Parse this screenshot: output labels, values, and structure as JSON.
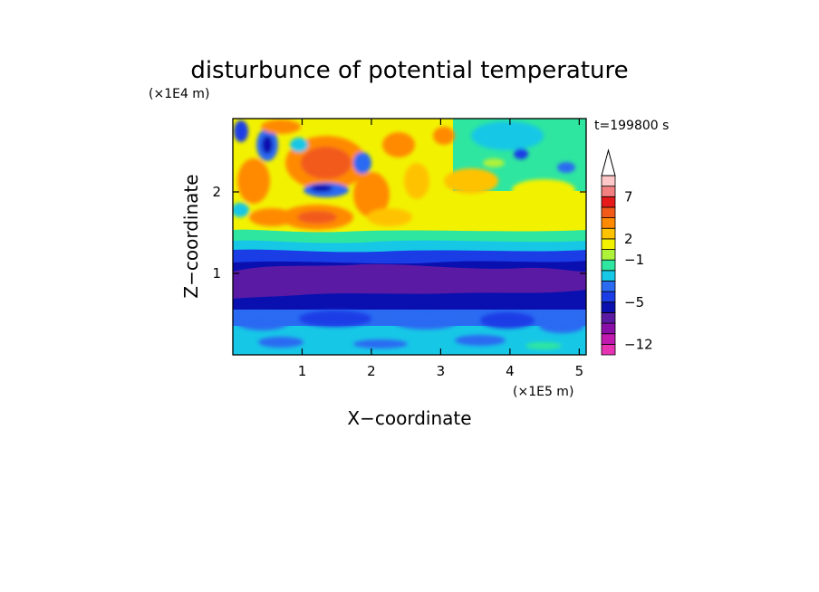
{
  "chart_data": {
    "type": "heatmap",
    "title": "disturbunce of potential temperature",
    "xlabel": "X−coordinate",
    "ylabel": "Z−coordinate",
    "x_unit": "(×1E5 m)",
    "y_unit": "(×1E4 m)",
    "time_label": "t=199800 s",
    "xlim": [
      0,
      5.1
    ],
    "ylim": [
      0,
      2.9
    ],
    "x_ticks": [
      {
        "value": 1,
        "label": "1"
      },
      {
        "value": 2,
        "label": "2"
      },
      {
        "value": 3,
        "label": "3"
      },
      {
        "value": 4,
        "label": "4"
      },
      {
        "value": 5,
        "label": "5"
      }
    ],
    "y_ticks": [
      {
        "value": 1,
        "label": "1"
      },
      {
        "value": 2,
        "label": "2"
      }
    ],
    "colorbar": {
      "colors": [
        "#e633b3",
        "#c21ab0",
        "#8a0fa8",
        "#5a1aa3",
        "#0a10b0",
        "#1a3de6",
        "#2a6bf2",
        "#17c7e6",
        "#2ee6a0",
        "#aef23a",
        "#f2f200",
        "#ffc200",
        "#ff8a00",
        "#f25a1a",
        "#e61a1a",
        "#f28080",
        "#ffc8c8"
      ],
      "tick_labels": [
        {
          "after_segment": 0,
          "label": "−12"
        },
        {
          "after_segment": 4,
          "label": "−5"
        },
        {
          "after_segment": 8,
          "label": "−1"
        },
        {
          "after_segment": 10,
          "label": "2"
        },
        {
          "after_segment": 14,
          "label": "7"
        }
      ],
      "extend": "max"
    }
  }
}
